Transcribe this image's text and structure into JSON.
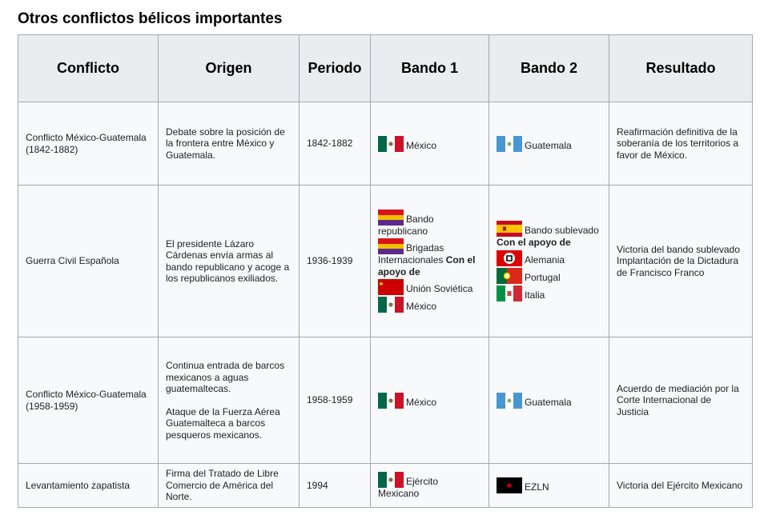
{
  "title": "Otros conflictos bélicos importantes",
  "headers": [
    "Conflicto",
    "Origen",
    "Periodo",
    "Bando 1",
    "Bando 2",
    "Resultado"
  ],
  "rows": [
    {
      "conflicto": "Conflicto México-Guatemala (1842-1882)",
      "origen": [
        "Debate sobre la posición de la frontera entre México y Guatemala."
      ],
      "periodo": "1842-1882",
      "bando1": [
        {
          "flag": "mexico-flag",
          "label": "México"
        }
      ],
      "bando2": [
        {
          "flag": "guatemala-flag",
          "label": "Guatemala"
        }
      ],
      "resultado": "Reafirmación definitiva de la soberanía de los territorios a favor de México."
    },
    {
      "conflicto": "Guerra Civil Española",
      "origen": [
        "El presidente Lázaro Cárdenas envía armas al bando republicano y acoge a los republicanos exiliados."
      ],
      "periodo": "1936-1939",
      "bando1_main": [
        {
          "flag": "spanish-republic-flag",
          "label": "Bando republicano"
        },
        {
          "flag": "spanish-republic-flag",
          "label": "Brigadas Internacionales"
        }
      ],
      "bando1_support_label": "Con el apoyo de",
      "bando1_support": [
        {
          "flag": "soviet-flag",
          "label": "Unión Soviética"
        },
        {
          "flag": "mexico-flag",
          "label": "México"
        }
      ],
      "bando2_main": [
        {
          "flag": "spain-flag",
          "label": "Bando sublevado"
        }
      ],
      "bando2_support_label": "Con el apoyo de",
      "bando2_support": [
        {
          "flag": "nazi-germany-flag",
          "label": "Alemania"
        },
        {
          "flag": "portugal-flag",
          "label": "Portugal"
        },
        {
          "flag": "italy-flag",
          "label": "Italia"
        }
      ],
      "resultado_lines": [
        "Victoria del bando sublevado",
        "Implantación de la Dictadura de Francisco Franco"
      ]
    },
    {
      "conflicto": "Conflicto México-Guatemala (1958-1959)",
      "origen": [
        "Continua entrada de barcos mexicanos a aguas guatemaltecas.",
        "Ataque de la Fuerza Aérea Guatemalteca a barcos pesqueros mexicanos."
      ],
      "periodo": "1958-1959",
      "bando1": [
        {
          "flag": "mexico-flag",
          "label": "México"
        }
      ],
      "bando2": [
        {
          "flag": "guatemala-flag",
          "label": "Guatemala"
        }
      ],
      "resultado": "Acuerdo de mediación por la Corte Internacional de Justicia"
    },
    {
      "conflicto": "Levantamiento zapatista",
      "origen": [
        "Firma del Tratado de Libre Comercio de América del Norte."
      ],
      "periodo": "1994",
      "bando1": [
        {
          "flag": "mexico-flag",
          "label": "Ejército Mexicano"
        }
      ],
      "bando2": [
        {
          "flag": "ezln-flag",
          "label": "EZLN"
        }
      ],
      "resultado": "Victoria del Ejército Mexicano"
    }
  ],
  "colors": {
    "header_bg": "#eaecf0",
    "cell_bg": "#f8f9fa",
    "border": "#a2a9b1"
  }
}
